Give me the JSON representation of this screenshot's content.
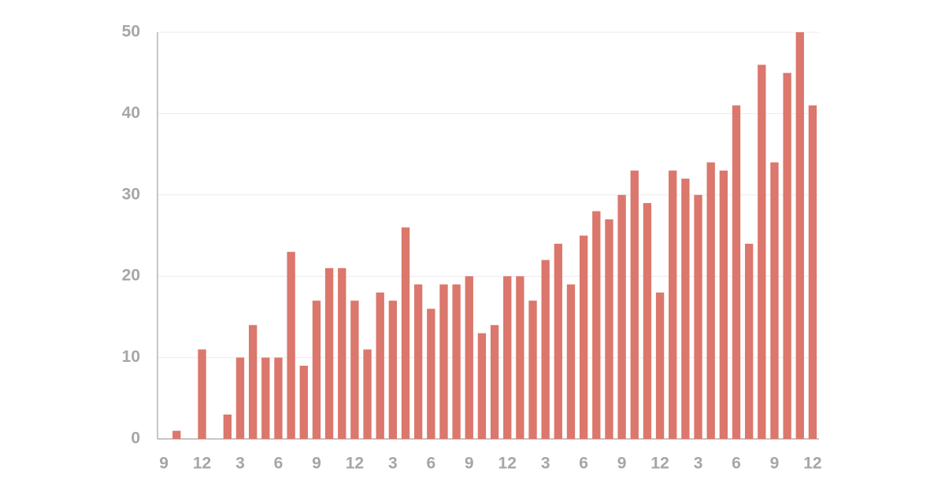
{
  "chart_data": {
    "type": "bar",
    "categories": [
      "9",
      null,
      null,
      "12",
      null,
      null,
      "3",
      null,
      null,
      "6",
      null,
      null,
      "9",
      null,
      null,
      "12",
      null,
      null,
      "3",
      null,
      null,
      "6",
      null,
      null,
      "9",
      null,
      null,
      "12",
      null,
      null,
      "3",
      null,
      null,
      "6",
      null,
      null,
      "9",
      null,
      null,
      "12",
      null,
      null,
      "3",
      null,
      null,
      "6",
      null,
      null,
      "9",
      null,
      null,
      "12"
    ],
    "values": [
      0,
      1,
      0,
      11,
      0,
      3,
      10,
      14,
      10,
      10,
      23,
      9,
      17,
      21,
      21,
      17,
      11,
      18,
      17,
      26,
      19,
      16,
      19,
      19,
      20,
      13,
      14,
      20,
      20,
      17,
      22,
      24,
      19,
      25,
      28,
      27,
      30,
      33,
      29,
      18,
      33,
      32,
      30,
      34,
      33,
      41,
      24,
      46,
      34,
      45,
      50,
      41
    ],
    "color": "#db776c",
    "ylim": [
      0,
      50
    ],
    "yticks": [
      0,
      10,
      20,
      30,
      40,
      50
    ],
    "grid": true
  }
}
